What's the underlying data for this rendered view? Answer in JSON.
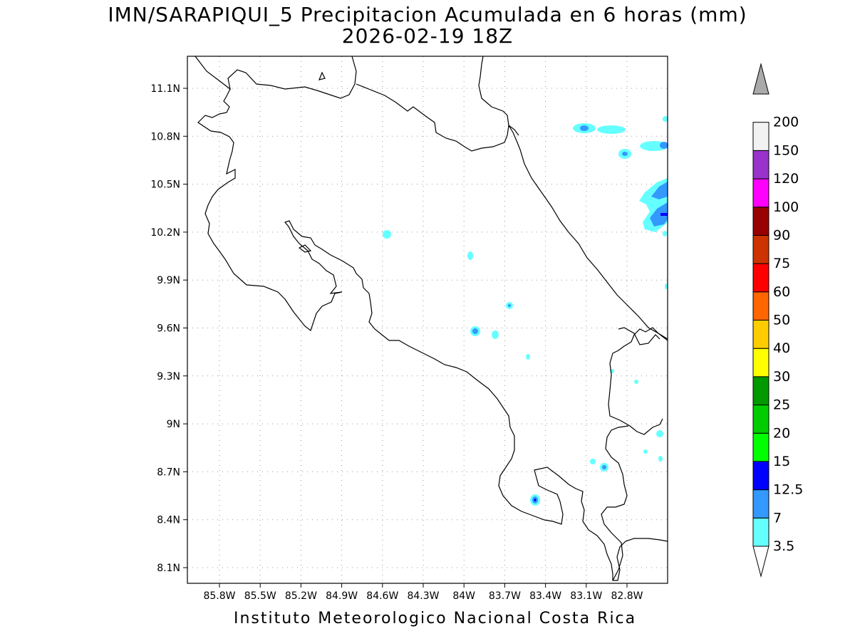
{
  "title": {
    "line1": "IMN/SARAPIQUI_5 Precipitacion Acumulada en 6 horas (mm)",
    "line2": "2026-02-19 18Z"
  },
  "footer": "Instituto Meteorologico Nacional Costa Rica",
  "map": {
    "lon_ticks": [
      "85.8W",
      "85.5W",
      "85.2W",
      "84.9W",
      "84.6W",
      "84.3W",
      "84W",
      "83.7W",
      "83.4W",
      "83.1W",
      "82.8W"
    ],
    "lat_ticks": [
      "11.1N",
      "10.8N",
      "10.5N",
      "10.2N",
      "9.9N",
      "9.6N",
      "9.3N",
      "9N",
      "8.7N",
      "8.4N",
      "8.1N"
    ],
    "grid": "dotted",
    "variable": "accumulated precipitation",
    "units": "mm"
  },
  "colorbar": {
    "levels": [
      "3.5",
      "7",
      "12.5",
      "15",
      "20",
      "25",
      "30",
      "40",
      "50",
      "60",
      "75",
      "90",
      "100",
      "120",
      "150",
      "200"
    ],
    "colors": [
      "#66ffff",
      "#3399ff",
      "#0000ff",
      "#00ff00",
      "#00cc00",
      "#009900",
      "#ffff00",
      "#ffcc00",
      "#ff6600",
      "#ff0000",
      "#cc3300",
      "#990000",
      "#ff00ff",
      "#9933cc",
      "#f2f2f2",
      "#aaaaaa"
    ],
    "under_color": "#ffffff"
  }
}
